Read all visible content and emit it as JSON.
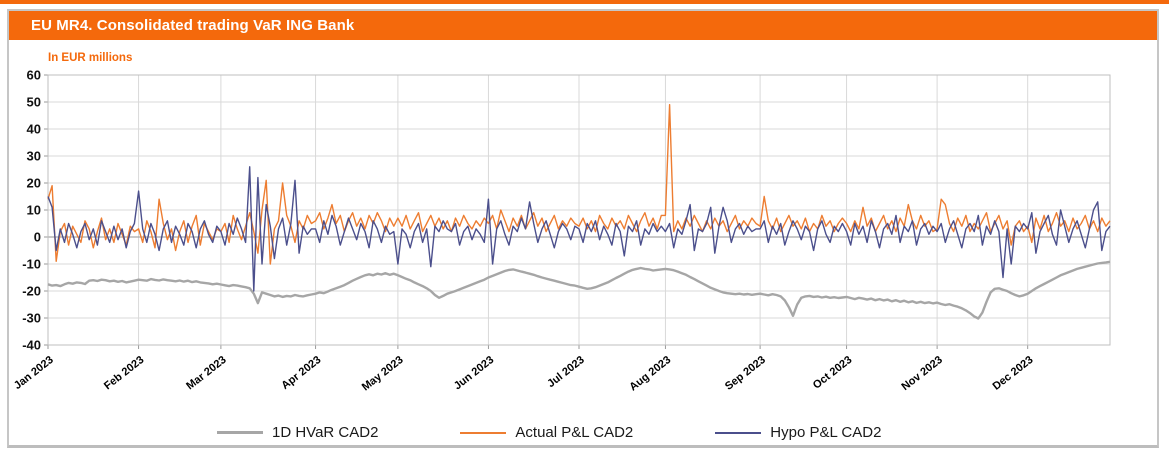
{
  "page": {
    "accent_orange": "#F4690C",
    "panel_border": "#C6C6C6",
    "grid_color": "#D9D9D9",
    "zero_line_color": "#A9A9A9",
    "plot_border": "#BFBFBF"
  },
  "header": {
    "title": "EU MR4. Consolidated trading VaR ING Bank",
    "background": "#F4690C",
    "text_color": "#FFFFFF"
  },
  "chart": {
    "units_label": "In EUR millions",
    "units_color": "#F4690C"
  },
  "chart_data": {
    "type": "line",
    "title": "EU MR4. Consolidated trading VaR ING Bank",
    "units": "In EUR millions",
    "grid": true,
    "legend_position": "bottom",
    "ylim": [
      -40,
      60
    ],
    "yticks": [
      60,
      50,
      40,
      30,
      20,
      10,
      0,
      -10,
      -20,
      -30,
      -40
    ],
    "x_tick_labels": [
      "Jan 2023",
      "Feb 2023",
      "Mar 2023",
      "Apr 2023",
      "May 2023",
      "Jun 2023",
      "Jul 2023",
      "Aug 2023",
      "Sep 2023",
      "Oct 2023",
      "Nov 2023",
      "Dec 2023"
    ],
    "x_tick_indices": [
      0,
      22,
      42,
      65,
      85,
      107,
      129,
      150,
      173,
      194,
      216,
      238
    ],
    "n_points": 259,
    "series": [
      {
        "name": "1D HVaR CAD2",
        "color": "#A6A6A6",
        "width": 2.4,
        "values": [
          -17.5,
          -18,
          -17.8,
          -18.2,
          -17.5,
          -17,
          -17.3,
          -16.8,
          -17,
          -17.4,
          -16.2,
          -16,
          -16.3,
          -15.8,
          -16,
          -16.4,
          -16.2,
          -16.6,
          -16.3,
          -16.8,
          -16.5,
          -16.2,
          -15.8,
          -16,
          -16.2,
          -15.6,
          -15.9,
          -16.1,
          -15.7,
          -16,
          -16.2,
          -16.4,
          -16.1,
          -16.5,
          -16.2,
          -16.7,
          -16.4,
          -16.8,
          -17,
          -17.2,
          -17.5,
          -17.3,
          -17.6,
          -17.9,
          -18.2,
          -17.8,
          -18,
          -18.3,
          -18.6,
          -19,
          -21,
          -24.5,
          -20.5,
          -21,
          -21.5,
          -22,
          -21.7,
          -22.2,
          -21.8,
          -22,
          -21.5,
          -21.8,
          -22,
          -21.6,
          -21.3,
          -21,
          -20.5,
          -20.8,
          -20.2,
          -19.5,
          -19,
          -18.4,
          -17.8,
          -17,
          -16.2,
          -15.5,
          -14.8,
          -14.2,
          -13.8,
          -14.2,
          -13.6,
          -13.9,
          -13.4,
          -14,
          -13.6,
          -14.2,
          -14.8,
          -15.5,
          -16,
          -16.8,
          -17.5,
          -18.2,
          -19,
          -20,
          -21.5,
          -22.5,
          -21.8,
          -21,
          -20.5,
          -20,
          -19.4,
          -18.8,
          -18.2,
          -17.6,
          -17,
          -16.4,
          -15.8,
          -15,
          -14.4,
          -13.8,
          -13.2,
          -12.6,
          -12.2,
          -12,
          -12.4,
          -12.8,
          -13.2,
          -13.6,
          -14,
          -14.5,
          -15,
          -15.4,
          -15.8,
          -16.2,
          -16.6,
          -17,
          -17.4,
          -17.8,
          -18,
          -18.4,
          -18.8,
          -19.2,
          -19,
          -18.6,
          -18,
          -17.4,
          -16.8,
          -16,
          -15.2,
          -14.4,
          -13.6,
          -12.8,
          -12.2,
          -11.8,
          -11.5,
          -11.8,
          -12,
          -12.4,
          -12.2,
          -12,
          -11.8,
          -12,
          -12.3,
          -12.8,
          -13.4,
          -14,
          -14.8,
          -15.6,
          -16.4,
          -17.2,
          -18,
          -18.8,
          -19.4,
          -20,
          -20.5,
          -20.8,
          -21,
          -21.2,
          -21,
          -21.3,
          -21.1,
          -21.4,
          -21.2,
          -21,
          -21.3,
          -21.6,
          -21.2,
          -21.5,
          -22,
          -23.5,
          -26,
          -29.2,
          -25,
          -22.5,
          -22,
          -21.8,
          -22.2,
          -22,
          -22.4,
          -22.1,
          -22.5,
          -22.3,
          -22.6,
          -22.4,
          -22.2,
          -22.6,
          -23,
          -22.5,
          -22.8,
          -23.2,
          -22.8,
          -23.4,
          -23,
          -23.5,
          -23.2,
          -23.8,
          -23.4,
          -24,
          -23.6,
          -24.2,
          -23.8,
          -24.4,
          -24,
          -24.5,
          -24.2,
          -24.6,
          -24.3,
          -24.8,
          -25.2,
          -24.9,
          -25.4,
          -25.8,
          -26.4,
          -27.2,
          -28.2,
          -29.4,
          -30.2,
          -28,
          -24,
          -20.5,
          -19.2,
          -19,
          -19.5,
          -20,
          -20.8,
          -21.5,
          -22,
          -21.6,
          -21,
          -20,
          -19,
          -18.2,
          -17.4,
          -16.6,
          -15.8,
          -15,
          -14.2,
          -13.6,
          -13,
          -12.4,
          -11.8,
          -11.4,
          -11,
          -10.6,
          -10.2,
          -9.8,
          -9.6,
          -9.4,
          -9.2
        ]
      },
      {
        "name": "Actual P&L CAD2",
        "color": "#ED7D31",
        "width": 1.4,
        "values": [
          14,
          19,
          -9,
          2,
          5,
          -3,
          4,
          1,
          -2,
          6,
          3,
          -4,
          2,
          7,
          -1,
          3,
          -2,
          5,
          1,
          -3,
          4,
          2,
          3,
          -2,
          6,
          2,
          -4,
          14,
          5,
          -1,
          3,
          -5,
          2,
          6,
          -2,
          4,
          8,
          -3,
          5,
          2,
          -1,
          3,
          2,
          5,
          -2,
          8,
          3,
          -1,
          4,
          9,
          2,
          -6,
          10,
          21,
          -10,
          3,
          6,
          20,
          8,
          4,
          -2,
          6,
          3,
          8,
          5,
          6,
          9,
          3,
          7,
          12,
          5,
          8,
          2,
          6,
          9,
          4,
          7,
          3,
          8,
          5,
          9,
          6,
          2,
          7,
          4,
          7,
          4,
          8,
          3,
          6,
          9,
          2,
          5,
          8,
          4,
          7,
          3,
          6,
          2,
          7,
          4,
          8,
          5,
          3,
          6,
          4,
          7,
          5,
          8,
          3,
          10,
          6,
          2,
          7,
          4,
          8,
          3,
          6,
          9,
          4,
          7,
          2,
          5,
          8,
          3,
          6,
          4,
          7,
          5,
          4,
          7,
          3,
          6,
          2,
          8,
          5,
          3,
          7,
          4,
          6,
          3,
          8,
          5,
          2,
          6,
          9,
          4,
          7,
          3,
          8,
          8,
          49,
          2,
          6,
          3,
          7,
          4,
          8,
          5,
          2,
          6,
          3,
          7,
          4,
          6,
          2,
          5,
          8,
          3,
          6,
          4,
          7,
          5,
          4,
          15,
          6,
          3,
          7,
          2,
          5,
          8,
          4,
          6,
          3,
          7,
          2,
          5,
          3,
          8,
          4,
          6,
          2,
          5,
          7,
          5,
          2,
          6,
          3,
          11,
          4,
          7,
          2,
          5,
          8,
          3,
          6,
          2,
          7,
          4,
          12,
          6,
          3,
          8,
          4,
          6,
          2,
          3,
          14,
          12,
          5,
          2,
          7,
          4,
          8,
          2,
          5,
          3,
          6,
          9,
          2,
          5,
          8,
          3,
          6,
          -3,
          4,
          6,
          2,
          4,
          -2,
          7,
          3,
          8,
          2,
          5,
          9,
          4,
          6,
          2,
          7,
          3,
          5,
          8,
          3,
          6,
          2,
          7,
          4,
          6
        ]
      },
      {
        "name": "Hypo P&L CAD2",
        "color": "#4B4F8C",
        "width": 1.4,
        "values": [
          15,
          11,
          -5,
          3,
          -2,
          5,
          1,
          -4,
          2,
          5,
          -1,
          3,
          -3,
          6,
          2,
          -2,
          4,
          -1,
          3,
          -4,
          2,
          5,
          17,
          3,
          -2,
          5,
          1,
          -5,
          3,
          6,
          -2,
          4,
          1,
          -3,
          5,
          2,
          -4,
          3,
          6,
          1,
          -2,
          4,
          2,
          -3,
          5,
          1,
          7,
          3,
          -2,
          26,
          -20,
          22,
          -10,
          12,
          4,
          -8,
          3,
          7,
          -3,
          5,
          21,
          -6,
          4,
          1,
          3,
          3,
          -2,
          6,
          1,
          8,
          4,
          -3,
          2,
          7,
          3,
          -1,
          5,
          2,
          -4,
          6,
          3,
          -2,
          4,
          1,
          2,
          -10,
          3,
          1,
          -4,
          2,
          5,
          -2,
          3,
          -11,
          4,
          2,
          6,
          3,
          2,
          5,
          -3,
          2,
          4,
          -1,
          3,
          1,
          -2,
          14,
          -10,
          3,
          6,
          1,
          -3,
          4,
          2,
          7,
          3,
          13,
          5,
          -2,
          3,
          6,
          1,
          -4,
          2,
          5,
          3,
          -1,
          4,
          3,
          -2,
          5,
          2,
          6,
          -1,
          4,
          1,
          -3,
          5,
          2,
          -7,
          4,
          2,
          6,
          -3,
          3,
          1,
          5,
          2,
          4,
          2,
          5,
          -4,
          3,
          1,
          6,
          12,
          -5,
          3,
          2,
          5,
          11,
          -6,
          4,
          11,
          6,
          -2,
          3,
          5,
          1,
          4,
          2,
          3,
          3,
          6,
          -2,
          4,
          1,
          5,
          -3,
          2,
          6,
          3,
          -1,
          4,
          2,
          -5,
          3,
          6,
          1,
          -2,
          4,
          2,
          5,
          2,
          -3,
          5,
          1,
          4,
          -2,
          6,
          2,
          -4,
          3,
          5,
          1,
          8,
          -2,
          4,
          2,
          6,
          -3,
          3,
          5,
          1,
          4,
          2,
          5,
          -2,
          3,
          6,
          1,
          -4,
          3,
          5,
          2,
          8,
          -3,
          4,
          1,
          6,
          2,
          -15,
          3,
          -10,
          4,
          2,
          5,
          3,
          9,
          -6,
          2,
          5,
          8,
          1,
          -3,
          10,
          4,
          -2,
          3,
          6,
          1,
          -4,
          3,
          10,
          13,
          -5,
          2,
          4
        ]
      }
    ]
  },
  "legend": {
    "items": [
      {
        "label": "1D HVaR CAD2"
      },
      {
        "label": "Actual P&L CAD2"
      },
      {
        "label": "Hypo P&L CAD2"
      }
    ]
  }
}
